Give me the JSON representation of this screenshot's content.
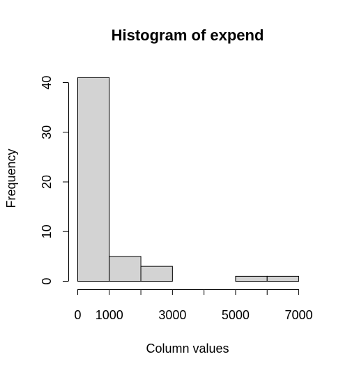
{
  "chart_data": {
    "type": "bar",
    "subtype": "histogram",
    "title": "Histogram of expend",
    "xlabel": "Column values",
    "ylabel": "Frequency",
    "bins": [
      {
        "start": 0,
        "end": 1000,
        "count": 41
      },
      {
        "start": 1000,
        "end": 2000,
        "count": 5
      },
      {
        "start": 2000,
        "end": 3000,
        "count": 3
      },
      {
        "start": 3000,
        "end": 4000,
        "count": 0
      },
      {
        "start": 4000,
        "end": 5000,
        "count": 0
      },
      {
        "start": 5000,
        "end": 6000,
        "count": 1
      },
      {
        "start": 6000,
        "end": 7000,
        "count": 1
      }
    ],
    "xlim": [
      0,
      7000
    ],
    "ylim": [
      0,
      40
    ],
    "x_ticks": [
      0,
      1000,
      2000,
      3000,
      4000,
      5000,
      6000,
      7000
    ],
    "x_tick_labels": [
      "0",
      "1000",
      "",
      "3000",
      "",
      "5000",
      "",
      "7000"
    ],
    "y_ticks": [
      0,
      10,
      20,
      30,
      40
    ],
    "y_tick_labels": [
      "0",
      "10",
      "20",
      "30",
      "40"
    ],
    "bar_fill": "#d3d3d3",
    "bar_stroke": "#000000",
    "grid": false,
    "legend": "none"
  }
}
